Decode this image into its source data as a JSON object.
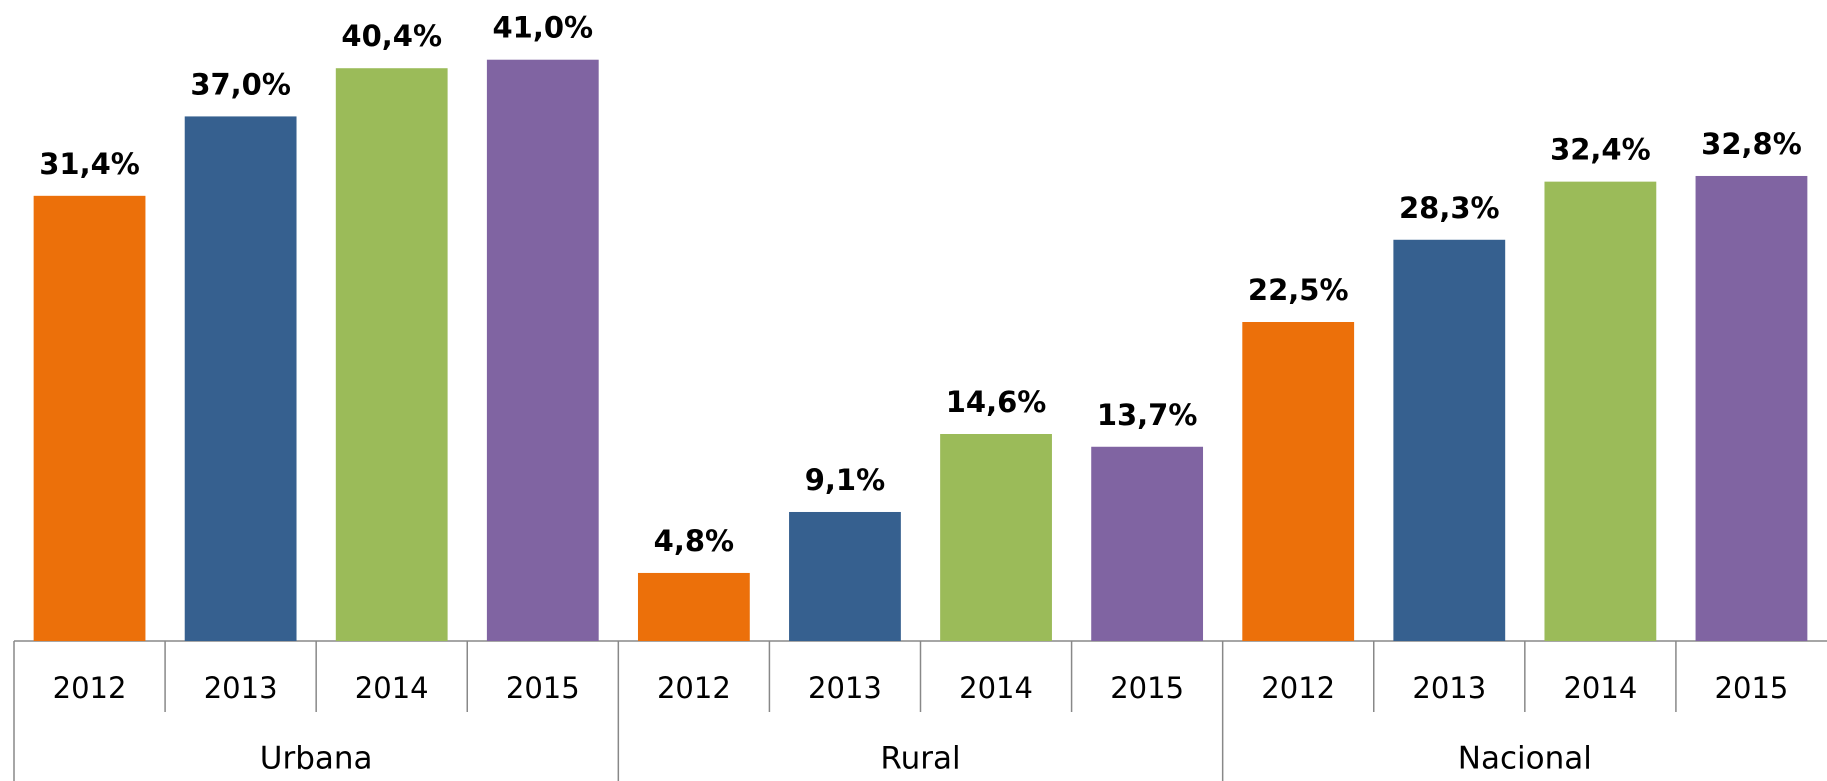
{
  "chart_data": {
    "type": "bar",
    "categories": [
      "Urbana",
      "Rural",
      "Nacional"
    ],
    "series": [
      {
        "name": "2012",
        "color": "#ec700a",
        "values": [
          31.4,
          4.8,
          22.5
        ],
        "value_labels": [
          "31,4%",
          "4,8%",
          "22,5%"
        ]
      },
      {
        "name": "2013",
        "color": "#36608f",
        "values": [
          37.0,
          9.1,
          28.3
        ],
        "value_labels": [
          "37,0%",
          "9,1%",
          "28,3%"
        ]
      },
      {
        "name": "2014",
        "color": "#9bbb59",
        "values": [
          40.4,
          14.6,
          32.4
        ],
        "value_labels": [
          "40,4%",
          "14,6%",
          "32,4%"
        ]
      },
      {
        "name": "2015",
        "color": "#8064a2",
        "values": [
          41.0,
          13.7,
          32.8
        ],
        "value_labels": [
          "41,0%",
          "13,7%",
          "32,8%"
        ]
      }
    ],
    "ylim": [
      0,
      45
    ]
  }
}
